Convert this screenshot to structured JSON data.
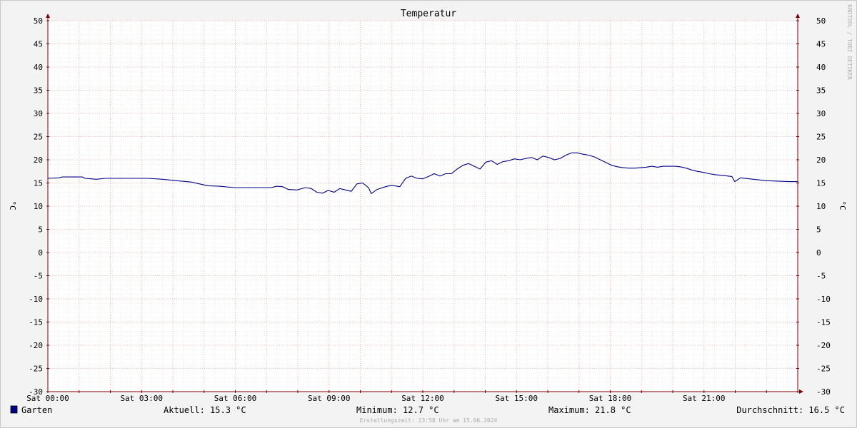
{
  "chart_data": {
    "type": "line",
    "title": "Temperatur",
    "ylabel_left": "°C",
    "ylabel_right": "°C",
    "watermark": "RRDTOOL / TOBI OETIKER",
    "ylim": [
      -30,
      50
    ],
    "y_ticks": [
      50,
      45,
      40,
      35,
      30,
      25,
      20,
      15,
      10,
      5,
      0,
      -5,
      -10,
      -15,
      -20,
      -25,
      -30
    ],
    "x_range_hours": [
      0,
      24
    ],
    "x_ticks": [
      {
        "hour": 0,
        "label": "Sat 00:00"
      },
      {
        "hour": 3,
        "label": "Sat 03:00"
      },
      {
        "hour": 6,
        "label": "Sat 06:00"
      },
      {
        "hour": 9,
        "label": "Sat 09:00"
      },
      {
        "hour": 12,
        "label": "Sat 12:00"
      },
      {
        "hour": 15,
        "label": "Sat 15:00"
      },
      {
        "hour": 18,
        "label": "Sat 18:00"
      },
      {
        "hour": 21,
        "label": "Sat 21:00"
      }
    ],
    "grid": true,
    "series": [
      {
        "name": "Garten",
        "color": "#00008b",
        "points": [
          [
            0.0,
            16.0
          ],
          [
            0.4,
            16.1
          ],
          [
            0.5,
            16.3
          ],
          [
            1.2,
            16.3
          ],
          [
            1.3,
            16.0
          ],
          [
            1.7,
            15.8
          ],
          [
            2.0,
            16.0
          ],
          [
            3.5,
            16.0
          ],
          [
            4.0,
            15.8
          ],
          [
            4.5,
            15.5
          ],
          [
            5.0,
            15.2
          ],
          [
            5.3,
            14.8
          ],
          [
            5.6,
            14.4
          ],
          [
            6.0,
            14.3
          ],
          [
            6.5,
            14.0
          ],
          [
            7.0,
            14.0
          ],
          [
            7.5,
            14.0
          ],
          [
            7.8,
            14.0
          ],
          [
            8.0,
            14.3
          ],
          [
            8.2,
            14.2
          ],
          [
            8.4,
            13.6
          ],
          [
            8.7,
            13.5
          ],
          [
            9.0,
            14.0
          ],
          [
            9.2,
            13.8
          ],
          [
            9.4,
            13.0
          ],
          [
            9.6,
            12.8
          ],
          [
            9.8,
            13.4
          ],
          [
            10.0,
            13.0
          ],
          [
            10.2,
            13.8
          ],
          [
            10.4,
            13.5
          ],
          [
            10.6,
            13.2
          ],
          [
            10.8,
            14.8
          ],
          [
            11.0,
            15.0
          ],
          [
            11.2,
            14.0
          ],
          [
            11.3,
            12.7
          ],
          [
            11.5,
            13.6
          ],
          [
            11.8,
            14.2
          ],
          [
            12.0,
            14.5
          ],
          [
            12.3,
            14.2
          ],
          [
            12.5,
            16.0
          ],
          [
            12.7,
            16.5
          ],
          [
            12.9,
            16.0
          ],
          [
            13.1,
            15.9
          ],
          [
            13.3,
            16.4
          ],
          [
            13.5,
            17.0
          ],
          [
            13.7,
            16.5
          ],
          [
            13.9,
            17.0
          ],
          [
            14.1,
            17.0
          ],
          [
            14.3,
            18.0
          ],
          [
            14.5,
            18.8
          ],
          [
            14.7,
            19.2
          ],
          [
            14.9,
            18.6
          ],
          [
            15.1,
            18.0
          ],
          [
            15.3,
            19.5
          ],
          [
            15.5,
            19.8
          ],
          [
            15.7,
            19.0
          ],
          [
            15.9,
            19.6
          ],
          [
            16.1,
            19.8
          ],
          [
            16.3,
            20.2
          ],
          [
            16.5,
            20.0
          ],
          [
            16.7,
            20.3
          ],
          [
            16.9,
            20.5
          ],
          [
            17.1,
            20.0
          ],
          [
            17.3,
            20.8
          ],
          [
            17.5,
            20.5
          ],
          [
            17.7,
            20.0
          ],
          [
            17.9,
            20.3
          ],
          [
            18.1,
            21.0
          ],
          [
            18.3,
            21.5
          ],
          [
            18.5,
            21.5
          ],
          [
            18.7,
            21.2
          ],
          [
            18.9,
            21.0
          ],
          [
            19.1,
            20.6
          ],
          [
            19.3,
            20.0
          ],
          [
            19.5,
            19.4
          ],
          [
            19.7,
            18.8
          ],
          [
            19.9,
            18.5
          ],
          [
            20.1,
            18.3
          ],
          [
            20.3,
            18.2
          ],
          [
            20.5,
            18.2
          ],
          [
            20.7,
            18.3
          ],
          [
            20.9,
            18.4
          ],
          [
            21.1,
            18.6
          ],
          [
            21.3,
            18.4
          ],
          [
            21.5,
            18.6
          ],
          [
            21.7,
            18.6
          ],
          [
            21.9,
            18.6
          ],
          [
            22.1,
            18.5
          ],
          [
            22.3,
            18.2
          ],
          [
            22.5,
            17.8
          ],
          [
            22.7,
            17.5
          ],
          [
            22.9,
            17.3
          ],
          [
            23.1,
            17.0
          ],
          [
            23.3,
            16.8
          ],
          [
            23.6,
            16.6
          ],
          [
            23.9,
            16.4
          ],
          [
            24.2,
            16.1
          ],
          [
            24.5,
            15.9
          ],
          [
            24.8,
            15.7
          ],
          [
            25.1,
            15.5
          ],
          [
            25.5,
            15.4
          ],
          [
            25.9,
            15.3
          ],
          [
            26.2,
            15.3
          ],
          [
            24.0,
            15.3
          ]
        ]
      }
    ]
  },
  "legend": {
    "swatch_color": "#00008b",
    "series_name": "Garten",
    "current": "Aktuell: 15.3 °C",
    "minimum": "Minimum: 12.7 °C",
    "maximum": "Maximum: 21.8 °C",
    "average": "Durchschnitt: 16.5 °C"
  },
  "footer": {
    "created": "Erstellungszeit: 23:58 Uhr am 15.06.2024"
  },
  "colors": {
    "background": "#f3f3f3",
    "plot_background": "#ffffff",
    "major_grid": "#ff9e9e",
    "minor_grid": "#dcdcdc",
    "axis": "#800000"
  }
}
